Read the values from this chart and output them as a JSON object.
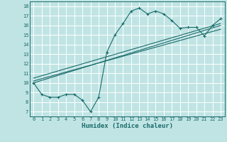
{
  "xlabel": "Humidex (Indice chaleur)",
  "bg_color": "#c0e4e4",
  "grid_color": "#ffffff",
  "line_color": "#1a6b6b",
  "xlim": [
    -0.5,
    23.5
  ],
  "ylim": [
    6.5,
    18.5
  ],
  "xticks": [
    0,
    1,
    2,
    3,
    4,
    5,
    6,
    7,
    8,
    9,
    10,
    11,
    12,
    13,
    14,
    15,
    16,
    17,
    18,
    19,
    20,
    21,
    22,
    23
  ],
  "yticks": [
    7,
    8,
    9,
    10,
    11,
    12,
    13,
    14,
    15,
    16,
    17,
    18
  ],
  "curve1_x": [
    0,
    1,
    2,
    3,
    4,
    5,
    6,
    7,
    8,
    9,
    10,
    11,
    12,
    13,
    14,
    15,
    16,
    17,
    18,
    19,
    20,
    21,
    22,
    23
  ],
  "curve1_y": [
    10.0,
    8.8,
    8.5,
    8.5,
    8.8,
    8.8,
    8.2,
    7.0,
    8.5,
    13.2,
    15.0,
    16.2,
    17.5,
    17.8,
    17.2,
    17.5,
    17.2,
    16.5,
    15.7,
    15.8,
    15.8,
    14.9,
    16.0,
    16.7
  ],
  "line2_x": [
    0,
    23
  ],
  "line2_y": [
    10.0,
    16.0
  ],
  "line3_x": [
    0,
    23
  ],
  "line3_y": [
    10.2,
    15.6
  ],
  "line4_x": [
    0,
    23
  ],
  "line4_y": [
    10.5,
    16.2
  ]
}
